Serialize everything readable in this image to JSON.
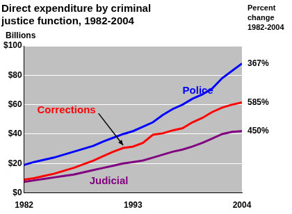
{
  "chart_data": {
    "type": "line",
    "title": [
      "Direct expenditure by criminal",
      "justice function, 1982-2004"
    ],
    "y_label": "Billions",
    "x": [
      1982,
      1983,
      1984,
      1985,
      1986,
      1987,
      1988,
      1989,
      1990,
      1991,
      1992,
      1993,
      1994,
      1995,
      1996,
      1997,
      1998,
      1999,
      2000,
      2001,
      2002,
      2003,
      2004
    ],
    "xlim": [
      1982,
      2004
    ],
    "xticks": [
      1982,
      1993,
      2004
    ],
    "ylim": [
      0,
      100
    ],
    "yticks": [
      {
        "value": 0,
        "label": "$0"
      },
      {
        "value": 20,
        "label": "$20"
      },
      {
        "value": 40,
        "label": "$40"
      },
      {
        "value": 60,
        "label": "$60"
      },
      {
        "value": 80,
        "label": "$80"
      },
      {
        "value": 100,
        "label": "$100"
      }
    ],
    "grid": true,
    "percent_change_title": [
      "Percent",
      "change",
      "1982-2004"
    ],
    "series": [
      {
        "name": "Police",
        "color": "#0000ff",
        "values": [
          19,
          21,
          22.5,
          24,
          26,
          28,
          30,
          32,
          35,
          37.5,
          40,
          42,
          45,
          48,
          53,
          57,
          60,
          64,
          67,
          71,
          78,
          83,
          88
        ],
        "percent_change": {
          "value": 367,
          "label": "367%"
        }
      },
      {
        "name": "Corrections",
        "color": "#ff0000",
        "values": [
          9,
          10,
          11.5,
          13,
          15,
          17,
          19.5,
          22,
          25,
          28,
          30.5,
          31.5,
          34,
          39.5,
          40.5,
          42.5,
          44,
          48,
          51,
          55,
          58,
          60,
          61.5
        ],
        "percent_change": {
          "value": 585,
          "label": "585%"
        }
      },
      {
        "name": "Judicial",
        "color": "#800080",
        "values": [
          7.5,
          8.5,
          9.5,
          10.5,
          11.5,
          12.5,
          14,
          15.5,
          17,
          18.5,
          20,
          21,
          22,
          24,
          26,
          28,
          29.5,
          31.5,
          34,
          37,
          40,
          41.5,
          42
        ],
        "percent_change": {
          "value": 450,
          "label": "450%"
        }
      }
    ]
  }
}
